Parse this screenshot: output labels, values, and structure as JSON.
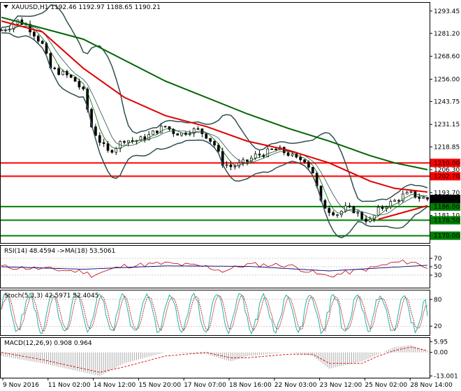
{
  "header": {
    "main": "XAUUSD,H1  1192.46 1192.97 1188.65 1190.21",
    "rsi": "RSI(14) 48.4594 ->MA(18) 53.5061",
    "stoch": "Stoch(5,3,3) 42.5971 52.4045",
    "macd": "MACD(12,26,9) 0.908 0.964"
  },
  "chart_data": [
    {
      "type": "candlestick",
      "symbol": "XAUUSD",
      "timeframe": "H1",
      "ohlc_last": {
        "open": 1192.46,
        "high": 1192.97,
        "low": 1188.65,
        "close": 1190.21
      },
      "ylim": [
        1166,
        1298
      ],
      "y_ticks": [
        "1293.45",
        "1281.20",
        "1268.60",
        "1256.00",
        "1243.75",
        "1231.15",
        "1218.85",
        "1206.30",
        "1193.70",
        "1181.10"
      ],
      "x_labels": [
        "9 Nov 2016",
        "11 Nov 02:00",
        "14 Nov 12:00",
        "15 Nov 20:00",
        "17 Nov 07:00",
        "18 Nov 16:00",
        "22 Nov 03:00",
        "23 Nov 12:00",
        "25 Nov 02:00",
        "28 Nov 14:00"
      ],
      "last_price_label": "1190.21",
      "levels": [
        {
          "value": 1210.0,
          "label": "1210.00",
          "color": "#ff0000"
        },
        {
          "value": 1202.7,
          "label": "1202.70",
          "color": "#ff0000"
        },
        {
          "value": 1186.0,
          "label": "1186.00",
          "color": "#008000"
        },
        {
          "value": 1178.5,
          "label": "1178.50",
          "color": "#008000"
        },
        {
          "value": 1170.0,
          "label": "1170.00",
          "color": "#008000"
        }
      ],
      "close_path": [
        [
          0,
          1283
        ],
        [
          2,
          1285
        ],
        [
          4,
          1288
        ],
        [
          6,
          1286
        ],
        [
          8,
          1281
        ],
        [
          10,
          1275
        ],
        [
          12,
          1262
        ],
        [
          14,
          1260
        ],
        [
          16,
          1258
        ],
        [
          18,
          1255
        ],
        [
          20,
          1249
        ],
        [
          22,
          1230
        ],
        [
          24,
          1222
        ],
        [
          26,
          1216
        ],
        [
          28,
          1219
        ],
        [
          30,
          1223
        ],
        [
          32,
          1222
        ],
        [
          34,
          1223
        ],
        [
          36,
          1225
        ],
        [
          38,
          1228
        ],
        [
          40,
          1230
        ],
        [
          42,
          1227
        ],
        [
          44,
          1226
        ],
        [
          46,
          1228
        ],
        [
          48,
          1228
        ],
        [
          50,
          1225
        ],
        [
          52,
          1220
        ],
        [
          54,
          1210
        ],
        [
          56,
          1208
        ],
        [
          58,
          1209
        ],
        [
          60,
          1211
        ],
        [
          62,
          1214
        ],
        [
          64,
          1215
        ],
        [
          66,
          1217
        ],
        [
          68,
          1217
        ],
        [
          70,
          1215
        ],
        [
          72,
          1212
        ],
        [
          74,
          1212
        ],
        [
          76,
          1205
        ],
        [
          78,
          1188
        ],
        [
          80,
          1184
        ],
        [
          82,
          1182
        ],
        [
          84,
          1185
        ],
        [
          86,
          1184
        ],
        [
          88,
          1180
        ],
        [
          90,
          1178
        ],
        [
          92,
          1184
        ],
        [
          94,
          1187
        ],
        [
          96,
          1189
        ],
        [
          98,
          1192
        ],
        [
          100,
          1193
        ],
        [
          102,
          1191
        ],
        [
          104,
          1190.21
        ]
      ],
      "ma_green_path": [
        [
          0,
          1290
        ],
        [
          20,
          1278
        ],
        [
          40,
          1255
        ],
        [
          60,
          1237
        ],
        [
          70,
          1229
        ],
        [
          80,
          1222
        ],
        [
          90,
          1214
        ],
        [
          96,
          1210
        ],
        [
          104,
          1206.3
        ]
      ],
      "ma_red_path": [
        [
          0,
          1288
        ],
        [
          10,
          1282
        ],
        [
          20,
          1262
        ],
        [
          30,
          1246
        ],
        [
          40,
          1236
        ],
        [
          50,
          1230
        ],
        [
          60,
          1222
        ],
        [
          70,
          1217
        ],
        [
          80,
          1210
        ],
        [
          90,
          1200
        ],
        [
          96,
          1196
        ],
        [
          104,
          1194
        ]
      ],
      "trendline": [
        [
          92,
          1179
        ],
        [
          104,
          1186.5
        ]
      ]
    },
    {
      "type": "line",
      "name": "RSI(14)",
      "ylim": [
        0,
        100
      ],
      "y_ticks": [
        "70",
        "50",
        "30"
      ],
      "series": [
        {
          "name": "RSI",
          "x": [
            0,
            10,
            20,
            22,
            30,
            40,
            50,
            54,
            60,
            70,
            78,
            80,
            90,
            96,
            100,
            104
          ],
          "values": [
            50,
            45,
            38,
            30,
            52,
            58,
            50,
            40,
            55,
            54,
            30,
            28,
            46,
            60,
            62,
            48.46
          ]
        },
        {
          "name": "MA(18)",
          "x": [
            0,
            20,
            40,
            60,
            80,
            104
          ],
          "values": [
            50,
            44,
            52,
            51,
            40,
            53.51
          ]
        }
      ]
    },
    {
      "type": "line",
      "name": "Stoch(5,3,3)",
      "ylim": [
        0,
        100
      ],
      "y_ticks": [
        "80",
        "20"
      ],
      "series": [
        {
          "name": "%K",
          "values": [
            42.5971
          ]
        },
        {
          "name": "%D",
          "values": [
            52.4045
          ]
        }
      ]
    },
    {
      "type": "bar",
      "name": "MACD(12,26,9)",
      "ylim": [
        -14,
        8
      ],
      "y_ticks": [
        "5.95",
        "0.00",
        "-13.001"
      ],
      "x": [
        0,
        10,
        20,
        24,
        30,
        40,
        50,
        56,
        60,
        70,
        76,
        80,
        88,
        92,
        96,
        100,
        104
      ],
      "values": [
        -2,
        -6,
        -11,
        -13,
        -6,
        0,
        -1,
        -5,
        -2,
        0,
        -2,
        -9,
        -5,
        -1,
        3,
        4,
        0.908
      ],
      "signal": [
        0,
        -4,
        -9,
        -11,
        -8,
        -2,
        0,
        -3,
        -3,
        -1,
        -1,
        -6,
        -6,
        -2,
        1,
        3,
        0.964
      ]
    }
  ]
}
